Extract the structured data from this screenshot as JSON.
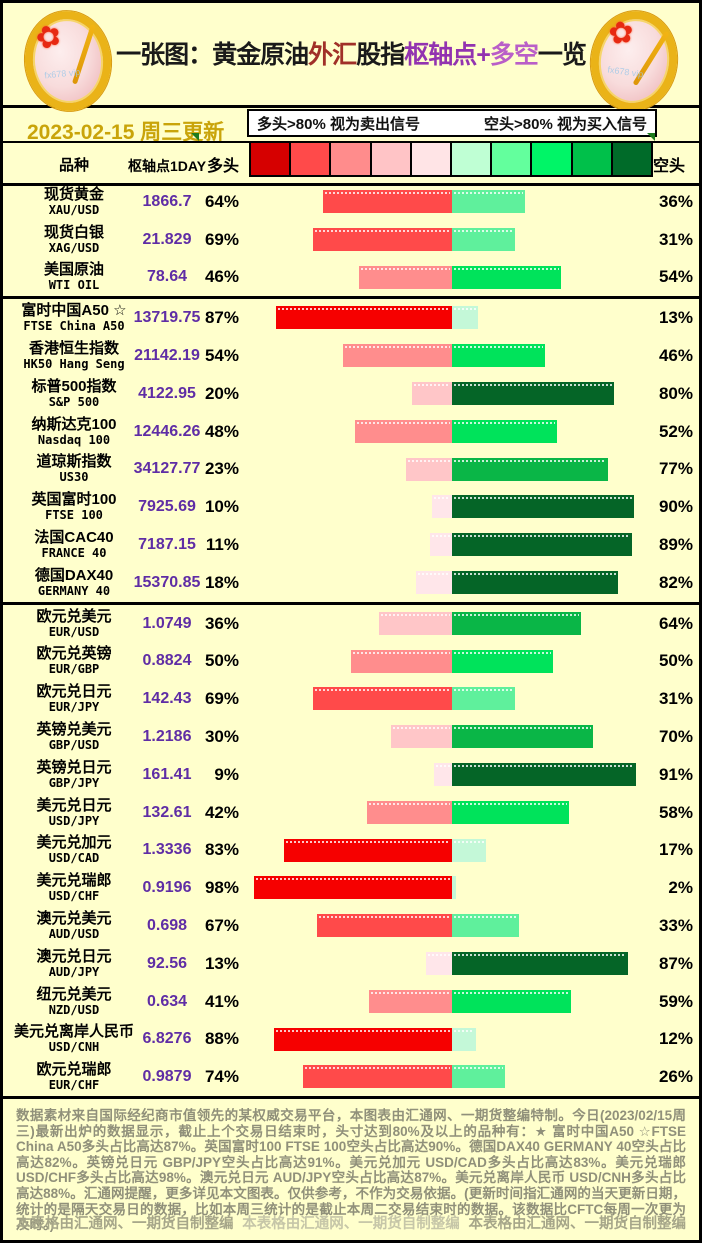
{
  "header": {
    "title_parts": [
      {
        "text": "一张图：黄金原油",
        "color": "#1a1a1a"
      },
      {
        "text": "外汇",
        "color": "#a03028"
      },
      {
        "text": "股指",
        "color": "#1a1a1a"
      },
      {
        "text": "枢轴点+",
        "color": "#9233b0"
      },
      {
        "text": "多空",
        "color": "#b95ec8"
      },
      {
        "text": "一览",
        "color": "#1a1a1a"
      }
    ],
    "coin_watermark": "fx678 vip",
    "date_text": "2023-02-15 周三更新",
    "legend": {
      "long": "多头>80% 视为卖出信号",
      "short": "空头>80% 视为买入信号"
    },
    "columns": {
      "symbol": "品种",
      "pivot": "枢轴点1DAY",
      "long": "多头",
      "short": "空头"
    },
    "scale_colors": [
      "#d60000",
      "#ff4a4a",
      "#ff8c8c",
      "#ffc4c6",
      "#ffe4e6",
      "#bfffd4",
      "#63ff9d",
      "#00f567",
      "#00c04a",
      "#006b29"
    ]
  },
  "colors": {
    "long_bins": [
      [
        80,
        "#f60000"
      ],
      [
        60,
        "#ff4a4a"
      ],
      [
        40,
        "#ff8d8d"
      ],
      [
        20,
        "#ffc6c8"
      ],
      [
        0,
        "#ffe6ea"
      ]
    ],
    "short_bins": [
      [
        80,
        "#056527"
      ],
      [
        60,
        "#0ab647"
      ],
      [
        40,
        "#00e35b"
      ],
      [
        20,
        "#5ff09c"
      ],
      [
        0,
        "#c4f8d8"
      ]
    ]
  },
  "chart_data": {
    "type": "bar",
    "title": "一张图：黄金原油外汇股指枢轴点+多空一览",
    "updated": "2023-02-15 周三更新",
    "series": [
      {
        "name": "多头"
      },
      {
        "name": "空头"
      }
    ],
    "xlim": [
      0,
      100
    ],
    "sections": [
      3,
      8,
      13
    ],
    "rows": [
      {
        "name": "现货黄金",
        "code": "XAU/USD",
        "pivot": "1866.7",
        "long": 64,
        "short": 36
      },
      {
        "name": "现货白银",
        "code": "XAG/USD",
        "pivot": "21.829",
        "long": 69,
        "short": 31
      },
      {
        "name": "美国原油",
        "code": "WTI OIL",
        "pivot": "78.64",
        "long": 46,
        "short": 54
      },
      {
        "name": "富时中国A50 ☆",
        "code": "FTSE China A50",
        "pivot": "13719.75",
        "long": 87,
        "short": 13
      },
      {
        "name": "香港恒生指数",
        "code": "HK50 Hang Seng",
        "pivot": "21142.19",
        "long": 54,
        "short": 46
      },
      {
        "name": "标普500指数",
        "code": "S&P 500",
        "pivot": "4122.95",
        "long": 20,
        "short": 80
      },
      {
        "name": "纳斯达克100",
        "code": "Nasdaq 100",
        "pivot": "12446.26",
        "long": 48,
        "short": 52
      },
      {
        "name": "道琼斯指数",
        "code": "US30",
        "pivot": "34127.77",
        "long": 23,
        "short": 77
      },
      {
        "name": "英国富时100",
        "code": "FTSE 100",
        "pivot": "7925.69",
        "long": 10,
        "short": 90
      },
      {
        "name": "法国CAC40",
        "code": "FRANCE 40",
        "pivot": "7187.15",
        "long": 11,
        "short": 89
      },
      {
        "name": "德国DAX40",
        "code": "GERMANY 40",
        "pivot": "15370.85",
        "long": 18,
        "short": 82
      },
      {
        "name": "欧元兑美元",
        "code": "EUR/USD",
        "pivot": "1.0749",
        "long": 36,
        "short": 64
      },
      {
        "name": "欧元兑英镑",
        "code": "EUR/GBP",
        "pivot": "0.8824",
        "long": 50,
        "short": 50
      },
      {
        "name": "欧元兑日元",
        "code": "EUR/JPY",
        "pivot": "142.43",
        "long": 69,
        "short": 31
      },
      {
        "name": "英镑兑美元",
        "code": "GBP/USD",
        "pivot": "1.2186",
        "long": 30,
        "short": 70
      },
      {
        "name": "英镑兑日元",
        "code": "GBP/JPY",
        "pivot": "161.41",
        "long": 9,
        "short": 91
      },
      {
        "name": "美元兑日元",
        "code": "USD/JPY",
        "pivot": "132.61",
        "long": 42,
        "short": 58
      },
      {
        "name": "美元兑加元",
        "code": "USD/CAD",
        "pivot": "1.3336",
        "long": 83,
        "short": 17
      },
      {
        "name": "美元兑瑞郎",
        "code": "USD/CHF",
        "pivot": "0.9196",
        "long": 98,
        "short": 2
      },
      {
        "name": "澳元兑美元",
        "code": "AUD/USD",
        "pivot": "0.698",
        "long": 67,
        "short": 33
      },
      {
        "name": "澳元兑日元",
        "code": "AUD/JPY",
        "pivot": "92.56",
        "long": 13,
        "short": 87
      },
      {
        "name": "纽元兑美元",
        "code": "NZD/USD",
        "pivot": "0.634",
        "long": 41,
        "short": 59
      },
      {
        "name": "美元兑离岸人民币",
        "code": "USD/CNH",
        "pivot": "6.8276",
        "long": 88,
        "short": 12
      },
      {
        "name": "欧元兑瑞郎",
        "code": "EUR/CHF",
        "pivot": "0.9879",
        "long": 74,
        "short": 26
      }
    ]
  },
  "footer": {
    "text": "数据素材来自国际经纪商市值领先的某权威交易平台，本图表由汇通网、一期货整编特制。今日(2023/02/15周三)最新出炉的数据显示，截止上个交易日结束时，头寸达到80%及以上的品种有：★ 富时中国A50 ☆FTSE China A50多头占比高达87%。英国富时100 FTSE 100空头占比高达90%。德国DAX40 GERMANY 40空头占比高达82%。英镑兑日元 GBP/JPY空头占比高达91%。美元兑加元 USD/CAD多头占比高达83%。美元兑瑞郎 USD/CHF多头占比高达98%。澳元兑日元 AUD/JPY空头占比高达87%。美元兑离岸人民币 USD/CNH多头占比高达88%。汇通网提醒，更多详见本文图表。仅供参考，不作为交易依据。(更新时间指汇通网的当天更新日期，统计的是隔天交易日的数据，比如本周三统计的是截止本周二交易结束时的数据。该数据比CFTC每周一次更为及时。)",
    "watermark": "本表格由汇通网、一期货自制整编"
  }
}
